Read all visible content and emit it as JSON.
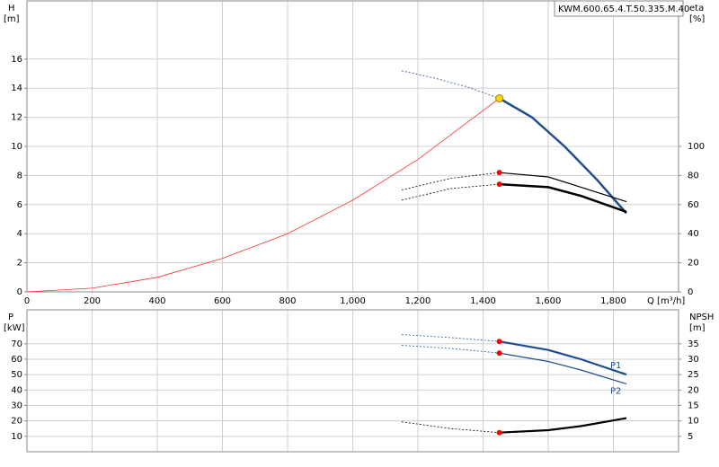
{
  "chart_data": [
    {
      "type": "line",
      "legend_text": "KWM.600.65.4.T.50.335.M.40",
      "ylabel": "H",
      "yunit": "[m]",
      "y2label": "eta",
      "y2unit": "[%]",
      "xlabel": "Q [m³/h]",
      "xlim": [
        0,
        2000
      ],
      "xticks": [
        0,
        200,
        400,
        600,
        800,
        {
          "value": 1000,
          "label": "1,000"
        },
        {
          "value": 1200,
          "label": "1,200"
        },
        {
          "value": 1400,
          "label": "1,400"
        },
        {
          "value": 1600,
          "label": "1,600"
        },
        {
          "value": 1800,
          "label": "1,800"
        }
      ],
      "xtick_labels": true,
      "ylim": [
        0,
        20
      ],
      "yticks": [
        0,
        2,
        4,
        6,
        8,
        10,
        12,
        14,
        16
      ],
      "y2lim": [
        0,
        200
      ],
      "y2ticks": [
        0,
        20,
        40,
        60,
        80,
        100
      ],
      "grid": true,
      "series": [
        {
          "color": "#ff3030",
          "width": 0.8,
          "dashed": false,
          "x": [
            0,
            200,
            400,
            600,
            800,
            1000,
            1200,
            1450
          ],
          "values": [
            0,
            0.25,
            1.0,
            2.3,
            4.0,
            6.3,
            9.1,
            13.3
          ]
        },
        {
          "color": "#1f4e8c",
          "width": 0.8,
          "dashed": true,
          "x": [
            1150,
            1250,
            1350,
            1450
          ],
          "values": [
            15.2,
            14.7,
            14.1,
            13.3
          ]
        },
        {
          "color": "#1f4e8c",
          "width": 2.5,
          "dashed": false,
          "x": [
            1450,
            1550,
            1650,
            1750,
            1840
          ],
          "values": [
            13.3,
            12.0,
            10.0,
            7.7,
            5.4
          ]
        },
        {
          "color": "#000000",
          "width": 0.8,
          "dashed": true,
          "axis": "y2",
          "x": [
            1150,
            1300,
            1450
          ],
          "values": [
            70,
            78,
            82
          ]
        },
        {
          "color": "#000000",
          "width": 1.2,
          "dashed": false,
          "axis": "y2",
          "x": [
            1450,
            1600,
            1700,
            1840
          ],
          "values": [
            82,
            79,
            72,
            62
          ]
        },
        {
          "color": "#000000",
          "width": 0.8,
          "dashed": true,
          "axis": "y2",
          "x": [
            1150,
            1300,
            1450
          ],
          "values": [
            63,
            71,
            74
          ]
        },
        {
          "color": "#000000",
          "width": 2.5,
          "dashed": false,
          "axis": "y2",
          "x": [
            1450,
            1600,
            1700,
            1840
          ],
          "values": [
            74,
            72,
            66,
            55
          ]
        }
      ],
      "points": [
        {
          "x": 1450,
          "value": 13.3,
          "color": "#ffd700"
        },
        {
          "x": 1450,
          "value": 82,
          "axis": "y2",
          "color": "#ff0000"
        },
        {
          "x": 1450,
          "value": 74,
          "axis": "y2",
          "color": "#ff0000"
        }
      ]
    },
    {
      "type": "line",
      "ylabel": "P",
      "yunit": "[kW]",
      "y2label": "NPSH",
      "y2unit": "[m]",
      "xlim": [
        0,
        2000
      ],
      "xticks": [
        0,
        200,
        400,
        600,
        800,
        1000,
        1200,
        1400,
        1600,
        1800
      ],
      "xtick_labels": false,
      "ylim": [
        0,
        92
      ],
      "yticks": [
        10,
        20,
        30,
        40,
        50,
        60,
        70
      ],
      "y2lim": [
        0,
        46
      ],
      "y2ticks": [
        5,
        10,
        15,
        20,
        25,
        30,
        35
      ],
      "grid": true,
      "series": [
        {
          "color": "#1f4e8c",
          "width": 0.8,
          "dashed": true,
          "x": [
            1150,
            1300,
            1450
          ],
          "values": [
            76,
            74,
            71.5
          ]
        },
        {
          "name": "P1",
          "color": "#1f4e8c",
          "width": 2.2,
          "dashed": false,
          "x": [
            1450,
            1600,
            1700,
            1840
          ],
          "values": [
            71.5,
            66,
            60,
            50
          ]
        },
        {
          "color": "#1f4e8c",
          "width": 0.8,
          "dashed": true,
          "x": [
            1150,
            1300,
            1450
          ],
          "values": [
            69,
            67,
            64
          ]
        },
        {
          "name": "P2",
          "color": "#1f4e8c",
          "width": 1.2,
          "dashed": false,
          "x": [
            1450,
            1600,
            1700,
            1840
          ],
          "values": [
            64,
            58.5,
            53,
            44
          ]
        },
        {
          "color": "#000000",
          "width": 0.8,
          "dashed": true,
          "axis": "y2",
          "x": [
            1150,
            1300,
            1450
          ],
          "values": [
            9.7,
            7.5,
            6.2
          ]
        },
        {
          "color": "#000000",
          "width": 2.2,
          "dashed": false,
          "axis": "y2",
          "x": [
            1450,
            1600,
            1700,
            1840
          ],
          "values": [
            6.2,
            7.0,
            8.3,
            10.9
          ]
        }
      ],
      "points": [
        {
          "x": 1450,
          "value": 71.5,
          "color": "#ff0000"
        },
        {
          "x": 1450,
          "value": 64,
          "color": "#ff0000"
        },
        {
          "x": 1450,
          "value": 6.2,
          "axis": "y2",
          "color": "#ff0000"
        }
      ]
    }
  ]
}
